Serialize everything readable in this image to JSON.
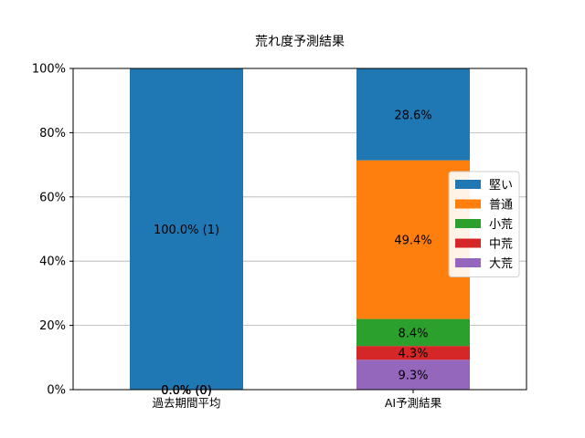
{
  "chart_data": {
    "type": "bar",
    "stacked": true,
    "title": "荒れ度予測結果",
    "xlabel": "",
    "ylabel": "",
    "ylim": [
      0,
      100
    ],
    "y_ticks": [
      "0%",
      "20%",
      "40%",
      "60%",
      "80%",
      "100%"
    ],
    "categories": [
      "過去期間平均",
      "AI予測結果"
    ],
    "grid": "horizontal",
    "legend_position": "right",
    "series": [
      {
        "name": "大荒",
        "color": "#9467bd",
        "values": [
          0,
          9.3
        ],
        "labels": [
          "0.0% (0)",
          "9.3%"
        ]
      },
      {
        "name": "中荒",
        "color": "#d62728",
        "values": [
          0,
          4.3
        ],
        "labels": [
          "0.0% (0)",
          "4.3%"
        ]
      },
      {
        "name": "小荒",
        "color": "#2ca02c",
        "values": [
          0,
          8.4
        ],
        "labels": [
          "0.0% (0)",
          "8.4%"
        ]
      },
      {
        "name": "普通",
        "color": "#ff7f0e",
        "values": [
          0,
          49.4
        ],
        "labels": [
          "0.0% (0)",
          "49.4%"
        ]
      },
      {
        "name": "堅い",
        "color": "#1f77b4",
        "values": [
          100,
          28.6
        ],
        "labels": [
          "100.0% (1)",
          "28.6%"
        ]
      }
    ],
    "legend_order": [
      "堅い",
      "普通",
      "小荒",
      "中荒",
      "大荒"
    ]
  }
}
